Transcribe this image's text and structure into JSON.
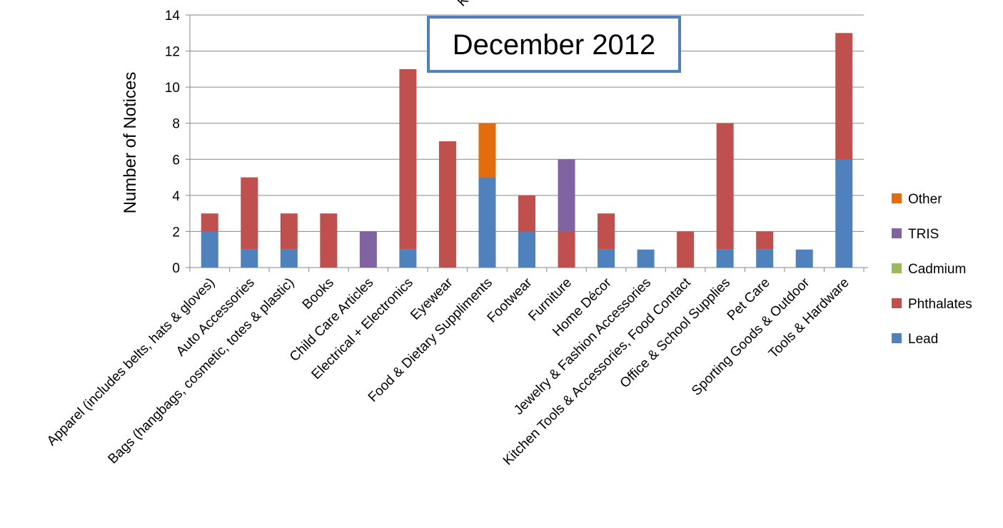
{
  "chart_data": {
    "type": "bar",
    "stacked": true,
    "title": "December 2012",
    "ylabel": "Number of Notices",
    "xlabel": "",
    "ylim": [
      0,
      14
    ],
    "yticks": [
      0,
      2,
      4,
      6,
      8,
      10,
      12,
      14
    ],
    "grid": true,
    "legend_position": "right",
    "categories": [
      "Apparel (includes belts, hats & gloves)",
      "Auto Accessories",
      "Bags (hangbags, cosmetic, totes & plastic)",
      "Books",
      "Child Care Articles",
      "Electrical + Electronics",
      "Eyewear",
      "Food & Dietary Suppliments",
      "Footwear",
      "Furniture",
      "Home Décor",
      "Jewelry & Fashion Accessories",
      "Kitchen Tools & Accessories, Food Contact",
      "Office & School Supplies",
      "Pet Care",
      "Sporting Goods & Outdoor",
      "Tools & Hardware"
    ],
    "series": [
      {
        "name": "Lead",
        "color": "#4F81BD",
        "values": [
          2,
          1,
          1,
          0,
          0,
          1,
          0,
          5,
          2,
          0,
          1,
          1,
          0,
          1,
          1,
          1,
          6
        ]
      },
      {
        "name": "Phthalates",
        "color": "#C0504D",
        "values": [
          1,
          4,
          2,
          3,
          0,
          10,
          7,
          0,
          2,
          2,
          2,
          0,
          2,
          7,
          1,
          0,
          7
        ]
      },
      {
        "name": "Cadmium",
        "color": "#9BBB59",
        "values": [
          0,
          0,
          0,
          0,
          0,
          0,
          0,
          0,
          0,
          0,
          0,
          0,
          0,
          0,
          0,
          0,
          0
        ]
      },
      {
        "name": "TRIS",
        "color": "#8064A2",
        "values": [
          0,
          0,
          0,
          0,
          2,
          0,
          0,
          0,
          0,
          4,
          0,
          0,
          0,
          0,
          0,
          0,
          0
        ]
      },
      {
        "name": "Other",
        "color": "#E46C0A",
        "values": [
          0,
          0,
          0,
          0,
          0,
          0,
          0,
          3,
          0,
          0,
          0,
          0,
          0,
          0,
          0,
          0,
          0
        ]
      }
    ],
    "cropped_label_fragment": "Ki"
  }
}
